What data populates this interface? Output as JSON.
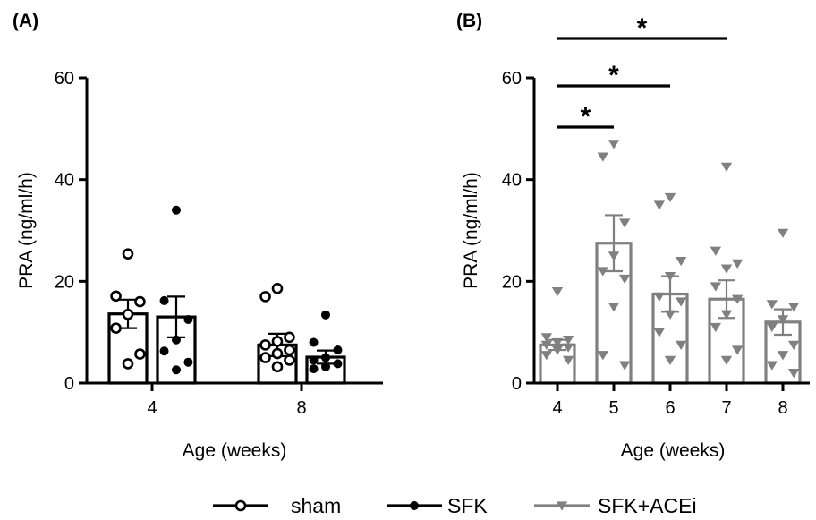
{
  "chart_data": [
    {
      "panel": "(A)",
      "type": "bar",
      "ylabel": "PRA (ng/ml/h)",
      "xlabel": "Age (weeks)",
      "ylim": [
        0,
        60
      ],
      "yticks": [
        0,
        20,
        40,
        60
      ],
      "categories": [
        "4",
        "8"
      ],
      "series": [
        {
          "name": "sham",
          "marker": "open-circle",
          "color": "#000000",
          "means": [
            13.6,
            7.5
          ],
          "sem": [
            2.8,
            2.2
          ],
          "points": [
            [
              25.4,
              17.1,
              16.0,
              13.5,
              10.8,
              5.7,
              3.8
            ],
            [
              18.6,
              17.0,
              9.0,
              8.2,
              7.5,
              6.5,
              5.8,
              5.0,
              4.5,
              3.2
            ]
          ]
        },
        {
          "name": "SFK",
          "marker": "filled-circle",
          "color": "#000000",
          "means": [
            13.0,
            5.1
          ],
          "sem": [
            4.0,
            1.3
          ],
          "points": [
            [
              34.0,
              16.2,
              12.5,
              8.5,
              6.3,
              4.1,
              2.6
            ],
            [
              13.4,
              8.0,
              6.5,
              5.0,
              4.5,
              3.8,
              3.2,
              2.8
            ]
          ]
        }
      ]
    },
    {
      "panel": "(B)",
      "type": "bar",
      "ylabel": "PRA (ng/ml/h)",
      "xlabel": "Age (weeks)",
      "ylim": [
        0,
        60
      ],
      "yticks": [
        0,
        20,
        40,
        60
      ],
      "categories": [
        "4",
        "5",
        "6",
        "7",
        "8"
      ],
      "series": [
        {
          "name": "SFK+ACEi",
          "marker": "down-triangle",
          "color": "#808080",
          "means": [
            7.5,
            27.5,
            17.5,
            16.5,
            12.0
          ],
          "sem": [
            1.0,
            5.5,
            3.5,
            3.7,
            2.5
          ],
          "points": [
            [
              18.0,
              9.0,
              8.5,
              8.0,
              7.5,
              7.0,
              6.5,
              5.5,
              4.5
            ],
            [
              47.0,
              44.5,
              31.5,
              25.0,
              22.0,
              20.5,
              15.0,
              5.5,
              3.5
            ],
            [
              36.5,
              35.0,
              24.0,
              21.0,
              17.0,
              16.0,
              13.5,
              10.0,
              7.5,
              4.5
            ],
            [
              42.5,
              26.0,
              23.5,
              22.5,
              19.0,
              16.5,
              13.5,
              11.0,
              6.5,
              4.5
            ],
            [
              29.5,
              15.5,
              15.0,
              12.5,
              11.0,
              7.5,
              5.5,
              3.5,
              2.0
            ]
          ]
        }
      ],
      "significance": [
        {
          "from": "4",
          "to": "5",
          "label": "*"
        },
        {
          "from": "4",
          "to": "6",
          "label": "*"
        },
        {
          "from": "4",
          "to": "7",
          "label": "*"
        }
      ]
    }
  ],
  "legend": [
    {
      "label": "sham",
      "marker": "open-circle",
      "color": "#000000"
    },
    {
      "label": "SFK",
      "marker": "filled-circle",
      "color": "#000000"
    },
    {
      "label": "SFK+ACEi",
      "marker": "down-triangle",
      "color": "#808080"
    }
  ]
}
